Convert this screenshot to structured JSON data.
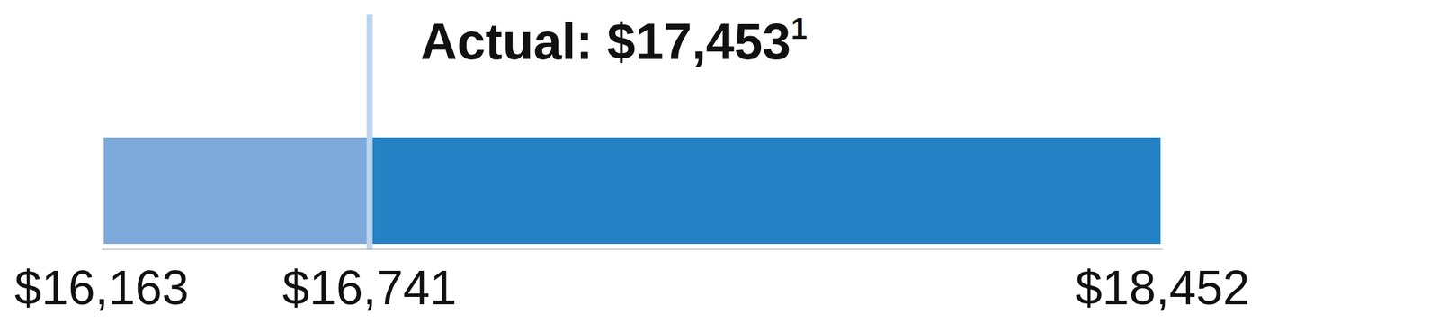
{
  "chart_data": {
    "type": "bar",
    "orientation": "horizontal",
    "segments": [
      {
        "start": 16163,
        "end": 16741,
        "color": "#7eaadb"
      },
      {
        "start": 16741,
        "end": 18452,
        "color": "#2482c5"
      }
    ],
    "xlim": [
      16163,
      18452
    ],
    "xticks": [
      {
        "value": 16163,
        "label": "$16,163"
      },
      {
        "value": 16741,
        "label": "$16,741"
      },
      {
        "value": 18452,
        "label": "$18,452"
      }
    ],
    "annotation": {
      "text": "Actual: $17,453",
      "note": "1",
      "x": 16741,
      "color": "#bdd4ee"
    },
    "grid": false
  }
}
